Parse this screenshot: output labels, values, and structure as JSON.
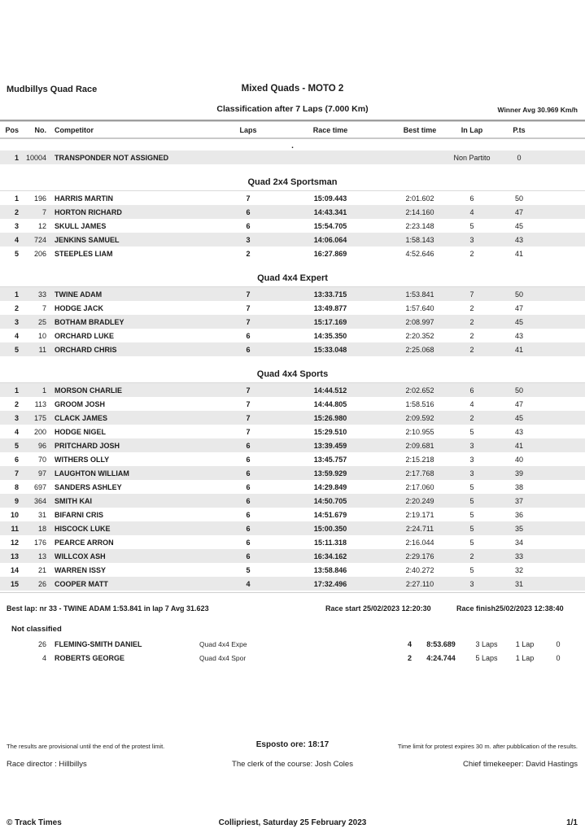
{
  "header": {
    "event_title": "Mudbillys Quad Race",
    "race_title": "Mixed Quads - MOTO 2",
    "classification": "Classification after 7 Laps (7.000 Km)",
    "winner_avg": "Winner Avg 30.969 Km/h"
  },
  "table": {
    "columns": {
      "pos": "Pos",
      "no": "No.",
      "competitor": "Competitor",
      "laps": "Laps",
      "race_time": "Race time",
      "best_time": "Best time",
      "in_lap": "In Lap",
      "pts": "P.ts"
    },
    "sections": [
      {
        "title": ".",
        "underline": false,
        "shaded_first": true,
        "rows": [
          {
            "pos": "1",
            "no": "10004",
            "name": "TRANSPONDER NOT ASSIGNED",
            "laps": "",
            "race_time": "",
            "best_time": "",
            "in_lap": "Non Partito",
            "pts": "0"
          }
        ]
      },
      {
        "title": "Quad 2x4 Sportsman",
        "underline": true,
        "shaded_first": false,
        "rows": [
          {
            "pos": "1",
            "no": "196",
            "name": "HARRIS MARTIN",
            "laps": "7",
            "race_time": "15:09.443",
            "best_time": "2:01.602",
            "in_lap": "6",
            "pts": "50"
          },
          {
            "pos": "2",
            "no": "7",
            "name": "HORTON RICHARD",
            "laps": "6",
            "race_time": "14:43.341",
            "best_time": "2:14.160",
            "in_lap": "4",
            "pts": "47"
          },
          {
            "pos": "3",
            "no": "12",
            "name": "SKULL JAMES",
            "laps": "6",
            "race_time": "15:54.705",
            "best_time": "2:23.148",
            "in_lap": "5",
            "pts": "45"
          },
          {
            "pos": "4",
            "no": "724",
            "name": "JENKINS SAMUEL",
            "laps": "3",
            "race_time": "14:06.064",
            "best_time": "1:58.143",
            "in_lap": "3",
            "pts": "43"
          },
          {
            "pos": "5",
            "no": "206",
            "name": "STEEPLES LIAM",
            "laps": "2",
            "race_time": "16:27.869",
            "best_time": "4:52.646",
            "in_lap": "2",
            "pts": "41"
          }
        ]
      },
      {
        "title": "Quad 4x4 Expert",
        "underline": true,
        "shaded_first": true,
        "rows": [
          {
            "pos": "1",
            "no": "33",
            "name": "TWINE ADAM",
            "laps": "7",
            "race_time": "13:33.715",
            "best_time": "1:53.841",
            "in_lap": "7",
            "pts": "50"
          },
          {
            "pos": "2",
            "no": "7",
            "name": "HODGE JACK",
            "laps": "7",
            "race_time": "13:49.877",
            "best_time": "1:57.640",
            "in_lap": "2",
            "pts": "47"
          },
          {
            "pos": "3",
            "no": "25",
            "name": "BOTHAM BRADLEY",
            "laps": "7",
            "race_time": "15:17.169",
            "best_time": "2:08.997",
            "in_lap": "2",
            "pts": "45"
          },
          {
            "pos": "4",
            "no": "10",
            "name": "ORCHARD LUKE",
            "laps": "6",
            "race_time": "14:35.350",
            "best_time": "2:20.352",
            "in_lap": "2",
            "pts": "43"
          },
          {
            "pos": "5",
            "no": "11",
            "name": "ORCHARD CHRIS",
            "laps": "6",
            "race_time": "15:33.048",
            "best_time": "2:25.068",
            "in_lap": "2",
            "pts": "41"
          }
        ]
      },
      {
        "title": "Quad 4x4 Sports",
        "underline": true,
        "shaded_first": true,
        "rows": [
          {
            "pos": "1",
            "no": "1",
            "name": "MORSON CHARLIE",
            "laps": "7",
            "race_time": "14:44.512",
            "best_time": "2:02.652",
            "in_lap": "6",
            "pts": "50"
          },
          {
            "pos": "2",
            "no": "113",
            "name": "GROOM JOSH",
            "laps": "7",
            "race_time": "14:44.805",
            "best_time": "1:58.516",
            "in_lap": "4",
            "pts": "47"
          },
          {
            "pos": "3",
            "no": "175",
            "name": "CLACK JAMES",
            "laps": "7",
            "race_time": "15:26.980",
            "best_time": "2:09.592",
            "in_lap": "2",
            "pts": "45"
          },
          {
            "pos": "4",
            "no": "200",
            "name": "HODGE NIGEL",
            "laps": "7",
            "race_time": "15:29.510",
            "best_time": "2:10.955",
            "in_lap": "5",
            "pts": "43"
          },
          {
            "pos": "5",
            "no": "96",
            "name": "PRITCHARD JOSH",
            "laps": "6",
            "race_time": "13:39.459",
            "best_time": "2:09.681",
            "in_lap": "3",
            "pts": "41"
          },
          {
            "pos": "6",
            "no": "70",
            "name": "WITHERS OLLY",
            "laps": "6",
            "race_time": "13:45.757",
            "best_time": "2:15.218",
            "in_lap": "3",
            "pts": "40"
          },
          {
            "pos": "7",
            "no": "97",
            "name": "LAUGHTON WILLIAM",
            "laps": "6",
            "race_time": "13:59.929",
            "best_time": "2:17.768",
            "in_lap": "3",
            "pts": "39"
          },
          {
            "pos": "8",
            "no": "697",
            "name": "SANDERS ASHLEY",
            "laps": "6",
            "race_time": "14:29.849",
            "best_time": "2:17.060",
            "in_lap": "5",
            "pts": "38"
          },
          {
            "pos": "9",
            "no": "364",
            "name": "SMITH KAI",
            "laps": "6",
            "race_time": "14:50.705",
            "best_time": "2:20.249",
            "in_lap": "5",
            "pts": "37"
          },
          {
            "pos": "10",
            "no": "31",
            "name": "BIFARNI CRIS",
            "laps": "6",
            "race_time": "14:51.679",
            "best_time": "2:19.171",
            "in_lap": "5",
            "pts": "36"
          },
          {
            "pos": "11",
            "no": "18",
            "name": "HISCOCK LUKE",
            "laps": "6",
            "race_time": "15:00.350",
            "best_time": "2:24.711",
            "in_lap": "5",
            "pts": "35"
          },
          {
            "pos": "12",
            "no": "176",
            "name": "PEARCE ARRON",
            "laps": "6",
            "race_time": "15:11.318",
            "best_time": "2:16.044",
            "in_lap": "5",
            "pts": "34"
          },
          {
            "pos": "13",
            "no": "13",
            "name": "WILLCOX ASH",
            "laps": "6",
            "race_time": "16:34.162",
            "best_time": "2:29.176",
            "in_lap": "2",
            "pts": "33"
          },
          {
            "pos": "14",
            "no": "21",
            "name": "WARREN ISSY",
            "laps": "5",
            "race_time": "13:58.846",
            "best_time": "2:40.272",
            "in_lap": "5",
            "pts": "32"
          },
          {
            "pos": "15",
            "no": "26",
            "name": "COOPER MATT",
            "laps": "4",
            "race_time": "17:32.496",
            "best_time": "2:27.110",
            "in_lap": "3",
            "pts": "31"
          }
        ]
      }
    ]
  },
  "summary": {
    "best_lap": "Best lap: nr 33 - TWINE ADAM 1:53.841 in lap 7 Avg 31.623",
    "race_start": "Race start 25/02/2023 12:20:30",
    "race_finish": "Race finish25/02/2023 12:38:40"
  },
  "not_classified": {
    "title": "Not classified",
    "rows": [
      {
        "no": "26",
        "name": "FLEMING-SMITH DANIEL",
        "class": "Quad 4x4 Expe",
        "laps": "4",
        "time": "8:53.689",
        "gap": "3 Laps",
        "best": "1 Lap",
        "pts": "0"
      },
      {
        "no": "4",
        "name": "ROBERTS GEORGE",
        "class": "Quad 4x4 Spor",
        "laps": "2",
        "time": "4:24.744",
        "gap": "5 Laps",
        "best": "1 Lap",
        "pts": "0"
      }
    ]
  },
  "footer": {
    "provisional_note": "The results are provisional until the end of the protest limit.",
    "esposto": "Esposto ore: 18:17",
    "protest_note": "Time limit for protest expires 30 m. after pubblication of the results.",
    "race_director": "Race director : Hillbillys",
    "clerk": "The clerk of the course:  Josh Coles",
    "timekeeper": "Chief timekeeper: David Hastings",
    "copyright": "© Track Times",
    "place_date": "Collipriest, Saturday 25 February 2023",
    "page_num": "1/1"
  }
}
